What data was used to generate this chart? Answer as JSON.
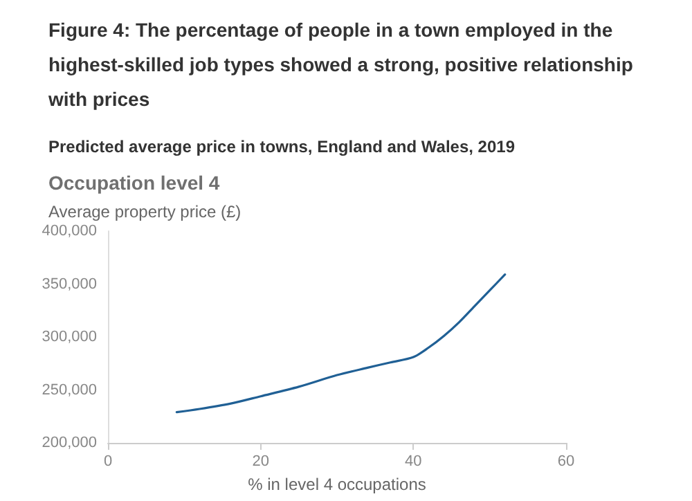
{
  "chart_data": {
    "type": "line",
    "title": "Figure 4: The percentage of people in a town employed in the highest-skilled job types showed a strong, positive relationship with prices",
    "subtitle": "Predicted average price in towns, England and Wales, 2019",
    "annotations": [
      "Occupation level 4"
    ],
    "ylabel": "Average property price (£)",
    "xlabel": "% in level 4 occupations",
    "x": [
      9,
      12,
      16,
      20,
      25,
      30,
      34,
      37,
      40,
      42,
      44,
      46,
      48,
      50,
      52
    ],
    "series": [
      {
        "color": "#206095",
        "values": [
          229000,
          232000,
          237000,
          244000,
          253000,
          264000,
          271000,
          276000,
          281000,
          290000,
          301000,
          314000,
          329000,
          344000,
          359000
        ]
      }
    ],
    "xlim": [
      0,
      60
    ],
    "xticks": [
      0,
      20,
      40,
      60
    ],
    "ylim": [
      200000,
      400000
    ],
    "yticks": [
      {
        "value": 200000,
        "label": "200,000"
      },
      {
        "value": 250000,
        "label": "250,000"
      },
      {
        "value": 300000,
        "label": "300,000"
      },
      {
        "value": 350000,
        "label": "350,000"
      },
      {
        "value": 400000,
        "label": "400,000"
      }
    ],
    "grid": false,
    "marker": "none",
    "line_style": "solid"
  }
}
